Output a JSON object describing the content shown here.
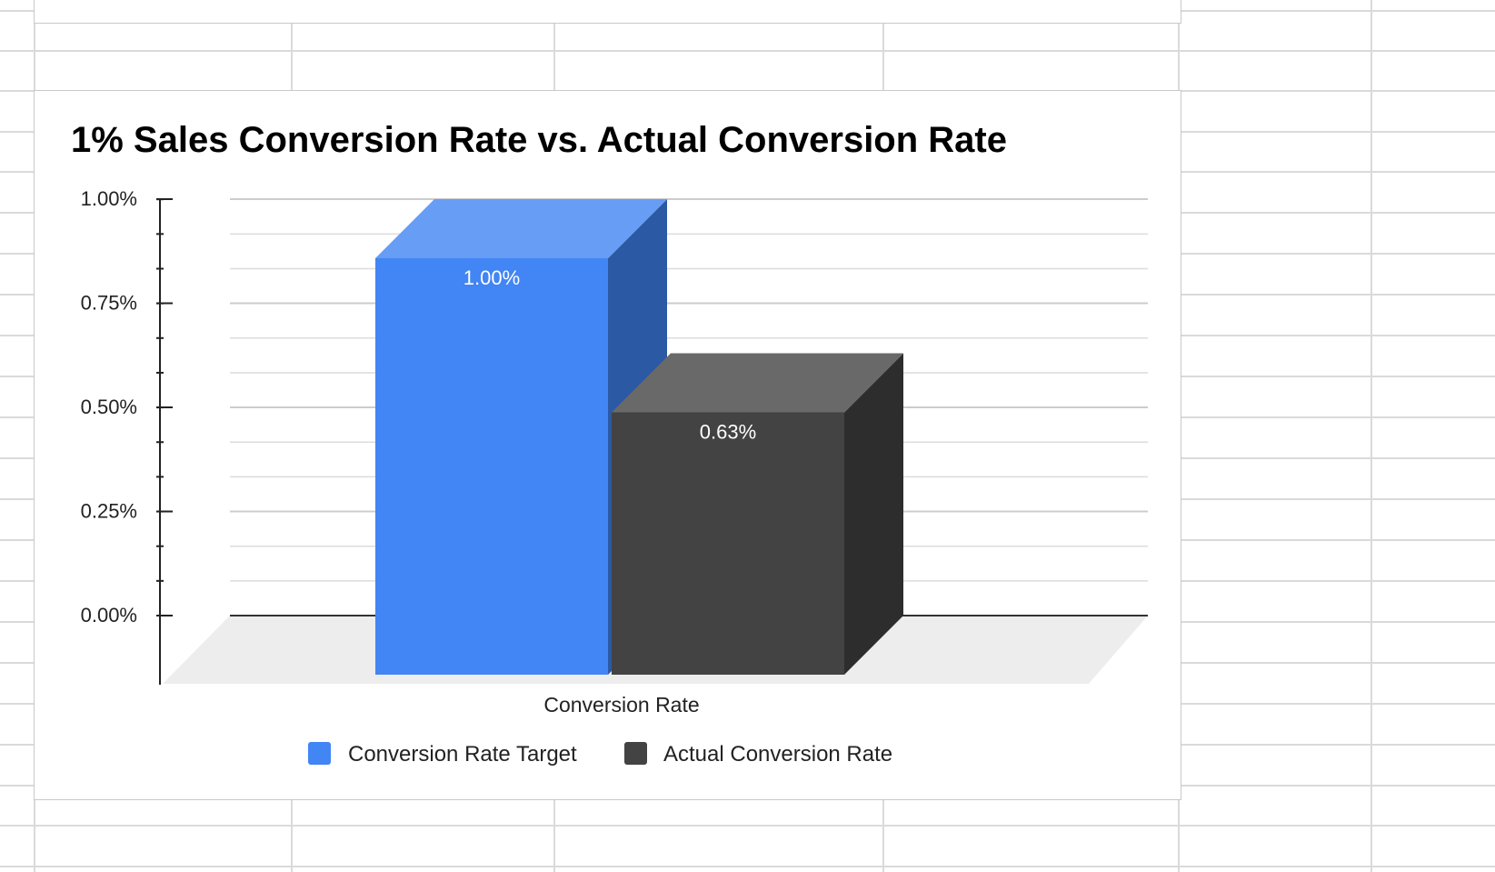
{
  "chart_data": {
    "type": "bar",
    "style": "3d-column",
    "title": "1% Sales Conversion Rate vs. Actual Conversion Rate",
    "xlabel": "Conversion Rate",
    "ylabel": "",
    "categories": [
      "Conversion Rate"
    ],
    "series": [
      {
        "name": "Conversion Rate Target",
        "values": [
          1.0
        ],
        "data_label": "1.00%",
        "color": "#4285f4"
      },
      {
        "name": "Actual Conversion Rate",
        "values": [
          0.63
        ],
        "data_label": "0.63%",
        "color": "#434343"
      }
    ],
    "ylim": [
      0,
      1
    ],
    "y_ticks": [
      {
        "value": 1.0,
        "label": "1.00%"
      },
      {
        "value": 0.75,
        "label": "0.75%"
      },
      {
        "value": 0.5,
        "label": "0.50%"
      },
      {
        "value": 0.25,
        "label": "0.25%"
      },
      {
        "value": 0.0,
        "label": "0.00%"
      }
    ],
    "minor_grid_step": 0.0833,
    "grid": true,
    "legend_position": "bottom",
    "colors": {
      "gridline": "#dcdcdc",
      "floor": "#ededed",
      "axis": "#222222",
      "data_label": "#ffffff"
    }
  },
  "spreadsheet": {
    "gridline_color": "#dadada"
  }
}
